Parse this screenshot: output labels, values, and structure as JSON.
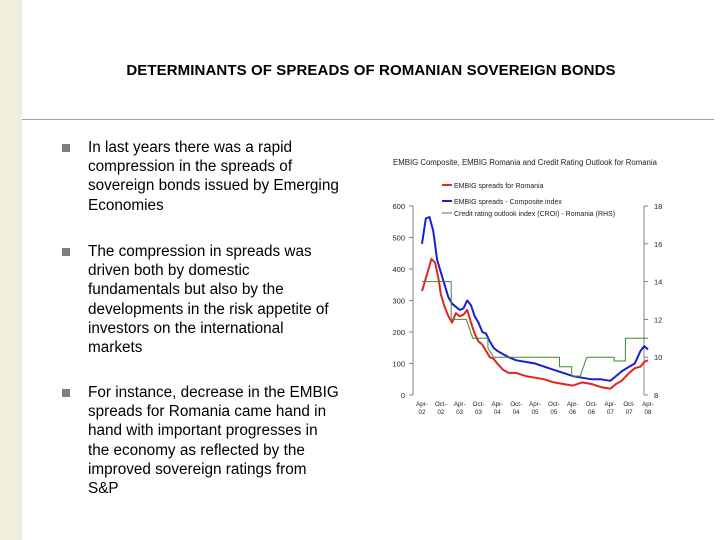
{
  "slide": {
    "title": "DETERMINANTS OF SPREADS OF ROMANIAN SOVEREIGN BONDS",
    "bullets": [
      "In last years there was a rapid compression in the spreads of sovereign bonds issued by Emerging Economies",
      "The compression in spreads was driven both by domestic fundamentals but also by the developments in the risk appetite of investors on the international markets",
      "For instance, decrease in the EMBIG spreads for Romania came hand in hand with important progresses in the economy as reflected by the improved sovereign ratings from S&P"
    ]
  },
  "colors": {
    "romania": "#e0261f",
    "composite": "#1c1cd4",
    "rating": "#3c8c32",
    "band": "#efefdc",
    "bullet": "#7f7f7f"
  },
  "chart_data": {
    "type": "line",
    "title": "EMBIG Composite, EMBIG Romania and Credit Rating Outlook for Romania",
    "legend": [
      "EMBIG spreads for Romania",
      "EMBIG spreads - Composite index",
      "Credit rating outlook index (CROI) - Romania (RHS)"
    ],
    "x_ticks": [
      [
        "Apr-",
        "02"
      ],
      [
        "Oct-",
        "02"
      ],
      [
        "Apr-",
        "03"
      ],
      [
        "Oct-",
        "03"
      ],
      [
        "Apr-",
        "04"
      ],
      [
        "Oct-",
        "04"
      ],
      [
        "Apr-",
        "05"
      ],
      [
        "Oct-",
        "05"
      ],
      [
        "Apr-",
        "06"
      ],
      [
        "Oct-",
        "06"
      ],
      [
        "Apr-",
        "07"
      ],
      [
        "Oct-",
        "07"
      ],
      [
        "Apr-",
        "08"
      ]
    ],
    "y_left": {
      "ticks": [
        0,
        100,
        200,
        300,
        400,
        500,
        600
      ],
      "range": [
        0,
        600
      ]
    },
    "y_right": {
      "ticks": [
        8,
        10,
        12,
        14,
        16,
        18
      ],
      "range": [
        8,
        18
      ]
    },
    "series": [
      {
        "name": "EMBIG spreads for Romania",
        "axis": "left",
        "x": [
          0,
          0.2,
          0.4,
          0.5,
          0.7,
          0.9,
          1,
          1.2,
          1.4,
          1.6,
          1.8,
          2,
          2.2,
          2.4,
          2.6,
          2.8,
          3,
          3.2,
          3.4,
          3.6,
          3.8,
          4,
          4.3,
          4.6,
          5,
          5.5,
          6,
          6.5,
          7,
          7.5,
          8,
          8.5,
          9,
          9.5,
          10,
          10.3,
          10.6,
          11,
          11.3,
          11.6,
          11.8,
          12
        ],
        "y": [
          330,
          370,
          410,
          432,
          420,
          360,
          320,
          280,
          250,
          230,
          260,
          250,
          255,
          270,
          230,
          195,
          170,
          160,
          140,
          120,
          115,
          100,
          80,
          70,
          70,
          60,
          55,
          50,
          40,
          35,
          30,
          40,
          35,
          25,
          20,
          35,
          45,
          70,
          85,
          90,
          105,
          110
        ]
      },
      {
        "name": "EMBIG spreads - Composite index",
        "axis": "left",
        "x": [
          0,
          0.2,
          0.4,
          0.6,
          0.8,
          1,
          1.2,
          1.4,
          1.6,
          1.8,
          2,
          2.2,
          2.4,
          2.6,
          2.8,
          3,
          3.2,
          3.4,
          3.6,
          3.8,
          4,
          4.3,
          4.6,
          5,
          5.5,
          6,
          6.5,
          7,
          7.5,
          8,
          8.5,
          9,
          9.5,
          10,
          10.3,
          10.6,
          11,
          11.3,
          11.6,
          11.8,
          12
        ],
        "y": [
          480,
          560,
          565,
          520,
          430,
          390,
          350,
          310,
          290,
          280,
          270,
          275,
          300,
          285,
          250,
          230,
          200,
          195,
          170,
          150,
          140,
          130,
          120,
          110,
          105,
          100,
          90,
          80,
          70,
          60,
          55,
          50,
          50,
          45,
          60,
          75,
          90,
          100,
          140,
          155,
          145
        ]
      },
      {
        "name": "Credit rating outlook index (CROI) - Romania (RHS)",
        "axis": "right",
        "x": [
          0,
          1.55,
          1.55,
          2.35,
          2.35,
          2.7,
          3.5,
          3.5,
          3.8,
          7.3,
          7.3,
          7.95,
          7.95,
          8.4,
          8.75,
          10.2,
          10.2,
          10.8,
          10.8,
          12
        ],
        "y": [
          14,
          14,
          12,
          12,
          12,
          11,
          11,
          10.5,
          10,
          10,
          9.5,
          9.5,
          9,
          9,
          10,
          10,
          9.8,
          9.8,
          11,
          11
        ]
      }
    ]
  }
}
